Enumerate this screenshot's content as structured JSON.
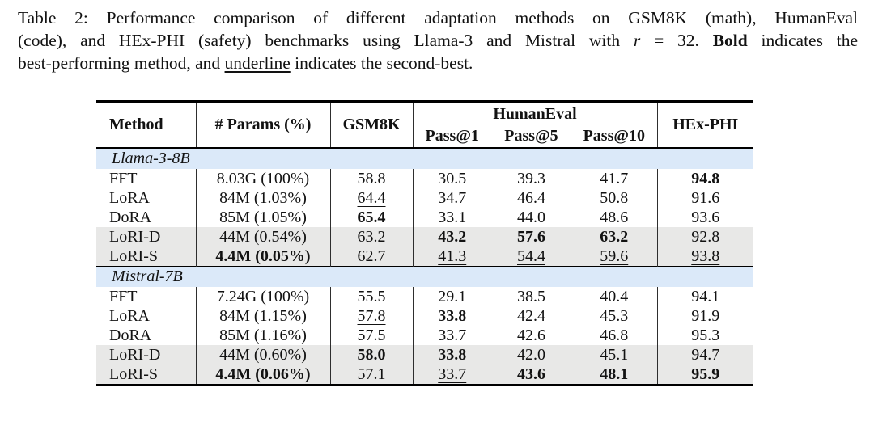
{
  "caption": {
    "line1": "Table 2: Performance comparison of different adaptation methods on GSM8K (math), HumanEval",
    "line2_pre": "(code), and HEx-PHI (safety) benchmarks using Llama-3 and Mistral with",
    "math_var": "r",
    "line2_eq": "= 32.",
    "bold_word": "Bold",
    "line2_post": "indicates the",
    "line3_pre": "best-performing method, and",
    "underline_word": "underline",
    "line3_post": "indicates the second-best."
  },
  "colors": {
    "section_band_blue": "#dbe9f9",
    "shaded_row_gray": "#e8e8e7",
    "rule_black": "#000000"
  },
  "table": {
    "headers": {
      "method": "Method",
      "params": "# Params (%)",
      "gsm8k": "GSM8K",
      "group": "HumanEval",
      "pass1": "Pass@1",
      "pass5": "Pass@5",
      "pass10": "Pass@10",
      "hexphi": "HEx-PHI"
    },
    "sections": [
      {
        "title": "Llama-3-8B",
        "rows": [
          {
            "method": "FFT",
            "shaded": false,
            "cells": [
              {
                "t": "8.03G (100%)",
                "s": ""
              },
              {
                "t": "58.8",
                "s": ""
              },
              {
                "t": "30.5",
                "s": ""
              },
              {
                "t": "39.3",
                "s": ""
              },
              {
                "t": "41.7",
                "s": ""
              },
              {
                "t": "94.8",
                "s": "b"
              }
            ]
          },
          {
            "method": "LoRA",
            "shaded": false,
            "cells": [
              {
                "t": "84M (1.03%)",
                "s": ""
              },
              {
                "t": "64.4",
                "s": "u"
              },
              {
                "t": "34.7",
                "s": ""
              },
              {
                "t": "46.4",
                "s": ""
              },
              {
                "t": "50.8",
                "s": ""
              },
              {
                "t": "91.6",
                "s": ""
              }
            ]
          },
          {
            "method": "DoRA",
            "shaded": false,
            "cells": [
              {
                "t": "85M (1.05%)",
                "s": ""
              },
              {
                "t": "65.4",
                "s": "b"
              },
              {
                "t": "33.1",
                "s": ""
              },
              {
                "t": "44.0",
                "s": ""
              },
              {
                "t": "48.6",
                "s": ""
              },
              {
                "t": "93.6",
                "s": ""
              }
            ]
          },
          {
            "method": "LoRI-D",
            "shaded": true,
            "cells": [
              {
                "t": "44M (0.54%)",
                "s": ""
              },
              {
                "t": "63.2",
                "s": ""
              },
              {
                "t": "43.2",
                "s": "b"
              },
              {
                "t": "57.6",
                "s": "b"
              },
              {
                "t": "63.2",
                "s": "b"
              },
              {
                "t": "92.8",
                "s": ""
              }
            ]
          },
          {
            "method": "LoRI-S",
            "shaded": true,
            "cells": [
              {
                "t": "4.4M (0.05%)",
                "s": "b"
              },
              {
                "t": "62.7",
                "s": ""
              },
              {
                "t": "41.3",
                "s": "u"
              },
              {
                "t": "54.4",
                "s": "u"
              },
              {
                "t": "59.6",
                "s": "u"
              },
              {
                "t": "93.8",
                "s": "u"
              }
            ]
          }
        ]
      },
      {
        "title": "Mistral-7B",
        "rows": [
          {
            "method": "FFT",
            "shaded": false,
            "cells": [
              {
                "t": "7.24G (100%)",
                "s": ""
              },
              {
                "t": "55.5",
                "s": ""
              },
              {
                "t": "29.1",
                "s": ""
              },
              {
                "t": "38.5",
                "s": ""
              },
              {
                "t": "40.4",
                "s": ""
              },
              {
                "t": "94.1",
                "s": ""
              }
            ]
          },
          {
            "method": "LoRA",
            "shaded": false,
            "cells": [
              {
                "t": "84M (1.15%)",
                "s": ""
              },
              {
                "t": "57.8",
                "s": "u"
              },
              {
                "t": "33.8",
                "s": "b"
              },
              {
                "t": "42.4",
                "s": ""
              },
              {
                "t": "45.3",
                "s": ""
              },
              {
                "t": "91.9",
                "s": ""
              }
            ]
          },
          {
            "method": "DoRA",
            "shaded": false,
            "cells": [
              {
                "t": "85M (1.16%)",
                "s": ""
              },
              {
                "t": "57.5",
                "s": ""
              },
              {
                "t": "33.7",
                "s": "u"
              },
              {
                "t": "42.6",
                "s": "u"
              },
              {
                "t": "46.8",
                "s": "u"
              },
              {
                "t": "95.3",
                "s": "u"
              }
            ]
          },
          {
            "method": "LoRI-D",
            "shaded": true,
            "cells": [
              {
                "t": "44M (0.60%)",
                "s": ""
              },
              {
                "t": "58.0",
                "s": "b"
              },
              {
                "t": "33.8",
                "s": "b"
              },
              {
                "t": "42.0",
                "s": ""
              },
              {
                "t": "45.1",
                "s": ""
              },
              {
                "t": "94.7",
                "s": ""
              }
            ]
          },
          {
            "method": "LoRI-S",
            "shaded": true,
            "cells": [
              {
                "t": "4.4M (0.06%)",
                "s": "b"
              },
              {
                "t": "57.1",
                "s": ""
              },
              {
                "t": "33.7",
                "s": "u"
              },
              {
                "t": "43.6",
                "s": "b"
              },
              {
                "t": "48.1",
                "s": "b"
              },
              {
                "t": "95.9",
                "s": "b"
              }
            ]
          }
        ]
      }
    ]
  }
}
